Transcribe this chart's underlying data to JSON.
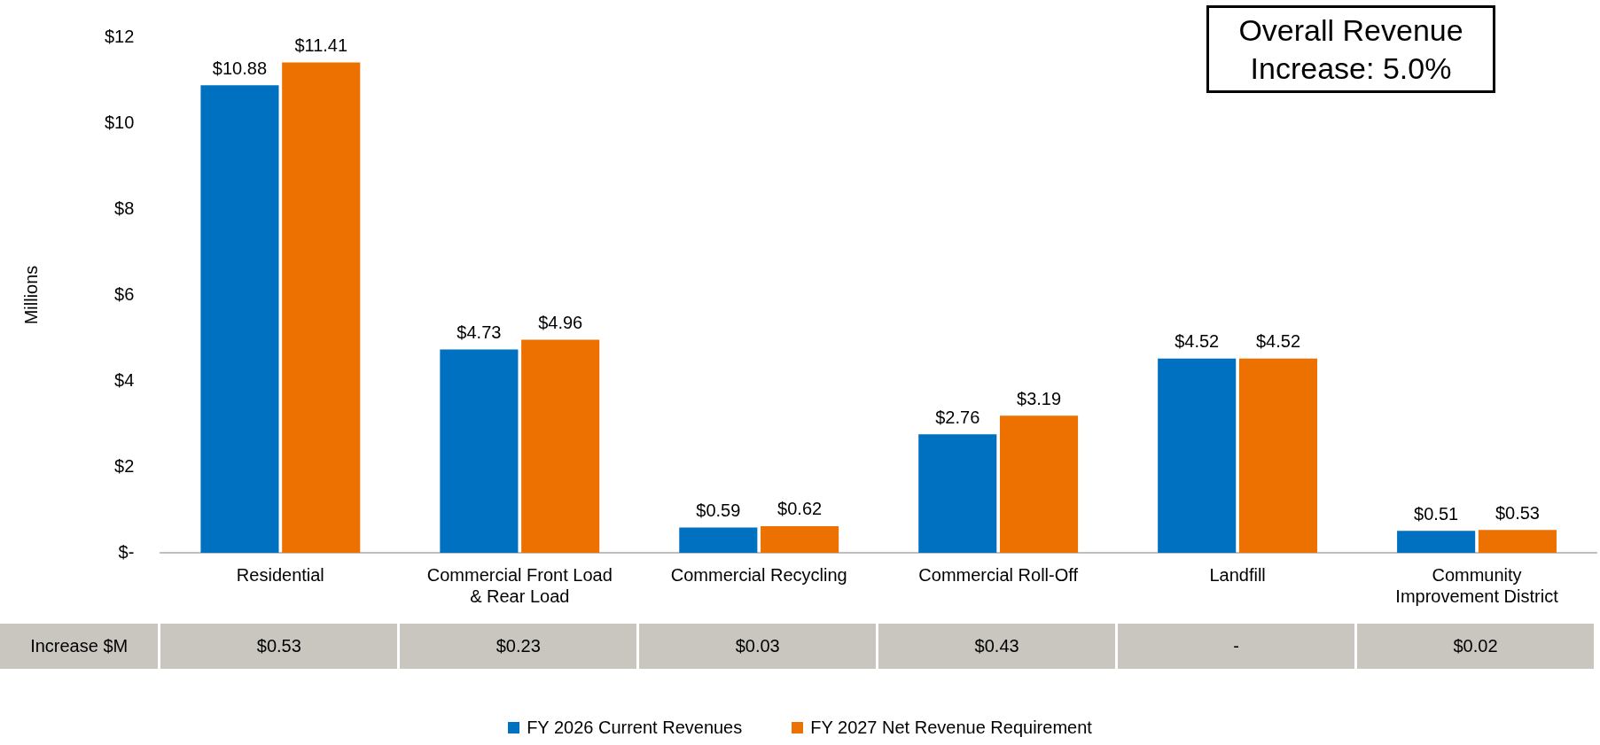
{
  "chart_data": {
    "type": "bar",
    "categories": [
      "Residential",
      "Commercial Front Load & Rear Load",
      "Commercial Recycling",
      "Commercial Roll-Off",
      "Landfill",
      "Community Improvement District"
    ],
    "series": [
      {
        "name": "FY 2026 Current Revenues",
        "color": "#0070c0",
        "values": [
          10.88,
          4.73,
          0.59,
          2.76,
          4.52,
          0.51
        ],
        "value_labels": [
          "$10.88",
          "$4.73",
          "$0.59",
          "$2.76",
          "$4.52",
          "$0.51"
        ]
      },
      {
        "name": "FY 2027 Net Revenue Requirement",
        "color": "#ed7100",
        "values": [
          11.41,
          4.96,
          0.62,
          3.19,
          4.52,
          0.53
        ],
        "value_labels": [
          "$11.41",
          "$4.96",
          "$0.62",
          "$3.19",
          "$4.52",
          "$0.53"
        ]
      }
    ],
    "ylabel": "Millions",
    "ylim": [
      0,
      12
    ],
    "yticks": [
      {
        "value": 0,
        "label": "$-"
      },
      {
        "value": 2,
        "label": "$2"
      },
      {
        "value": 4,
        "label": "$4"
      },
      {
        "value": 6,
        "label": "$6"
      },
      {
        "value": 8,
        "label": "$8"
      },
      {
        "value": 10,
        "label": "$10"
      },
      {
        "value": 12,
        "label": "$12"
      }
    ],
    "grid": false,
    "legend": "bottom",
    "annotations": [
      "Overall Revenue Increase: 5.0%",
      "Increase $M",
      "$0.53",
      "$0.23",
      "$0.03",
      "$0.43",
      "-",
      "$0.02"
    ]
  }
}
